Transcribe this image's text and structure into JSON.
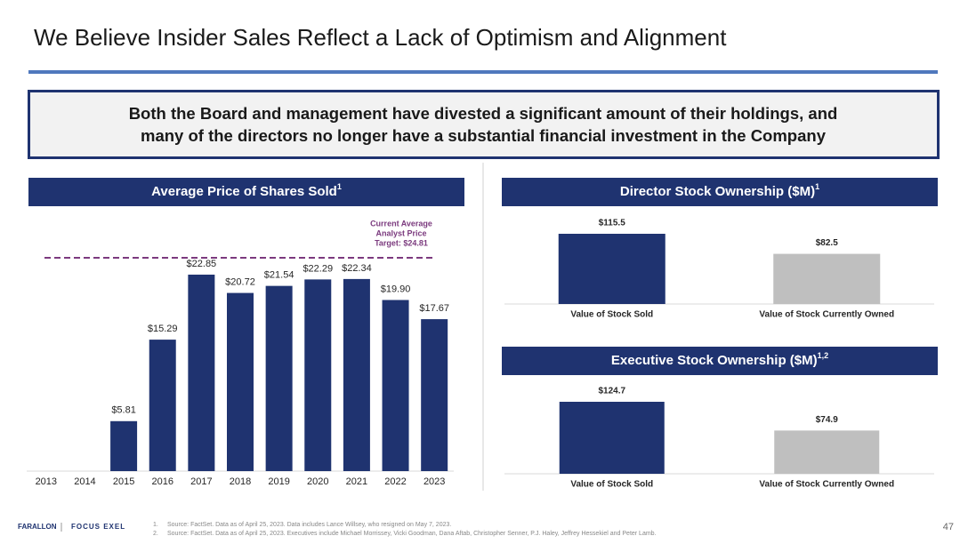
{
  "title": "We Believe Insider Sales Reflect a Lack of Optimism and Alignment",
  "callout": [
    "Both the Board and management have divested a significant amount of their holdings, and",
    "many of the directors no longer have a substantial financial investment in the Company"
  ],
  "chart_data": [
    {
      "type": "bar",
      "title": "Average Price of Shares Sold",
      "title_sup": "1",
      "categories": [
        "2013",
        "2014",
        "2015",
        "2016",
        "2017",
        "2018",
        "2019",
        "2020",
        "2021",
        "2022",
        "2023"
      ],
      "values": [
        null,
        null,
        5.81,
        15.29,
        22.85,
        20.72,
        21.54,
        22.29,
        22.34,
        19.9,
        17.67
      ],
      "value_labels": [
        null,
        null,
        "$5.81",
        "$15.29",
        "$22.85",
        "$20.72",
        "$21.54",
        "$22.29",
        "$22.34",
        "$19.90",
        "$17.67"
      ],
      "color": "#1f3370",
      "reference_line": {
        "value": 24.81,
        "label": [
          "Current Average",
          "Analyst Price",
          "Target: $24.81"
        ],
        "color": "#7b3a7e"
      }
    },
    {
      "type": "bar",
      "title": "Director Stock Ownership ($M)",
      "title_sup": "1",
      "categories": [
        "Value of Stock Sold",
        "Value of Stock Currently Owned"
      ],
      "values": [
        115.5,
        82.5
      ],
      "value_labels": [
        "$115.5",
        "$82.5"
      ],
      "colors": [
        "#1f3370",
        "#bfbfbf"
      ]
    },
    {
      "type": "bar",
      "title": "Executive Stock Ownership ($M)",
      "title_sup": "1,2",
      "categories": [
        "Value of Stock Sold",
        "Value of Stock Currently Owned"
      ],
      "values": [
        124.7,
        74.9
      ],
      "value_labels": [
        "$124.7",
        "$74.9"
      ],
      "colors": [
        "#1f3370",
        "#bfbfbf"
      ]
    }
  ],
  "footnotes": [
    {
      "number": "1.",
      "text": "Source: FactSet. Data as of April 25, 2023. Data includes Lance Willsey, who resigned on May 7, 2023."
    },
    {
      "number": "2.",
      "text": "Source: FactSet. Data as of April 25, 2023. Executives include Michael Morrissey, Vicki Goodman, Dana Aftab, Christopher Senner, P.J. Haley, Jeffrey Hessekiel and Peter Lamb."
    }
  ],
  "logos": [
    "FARALLON",
    "FOCUS EXEL"
  ],
  "page_number": "47"
}
